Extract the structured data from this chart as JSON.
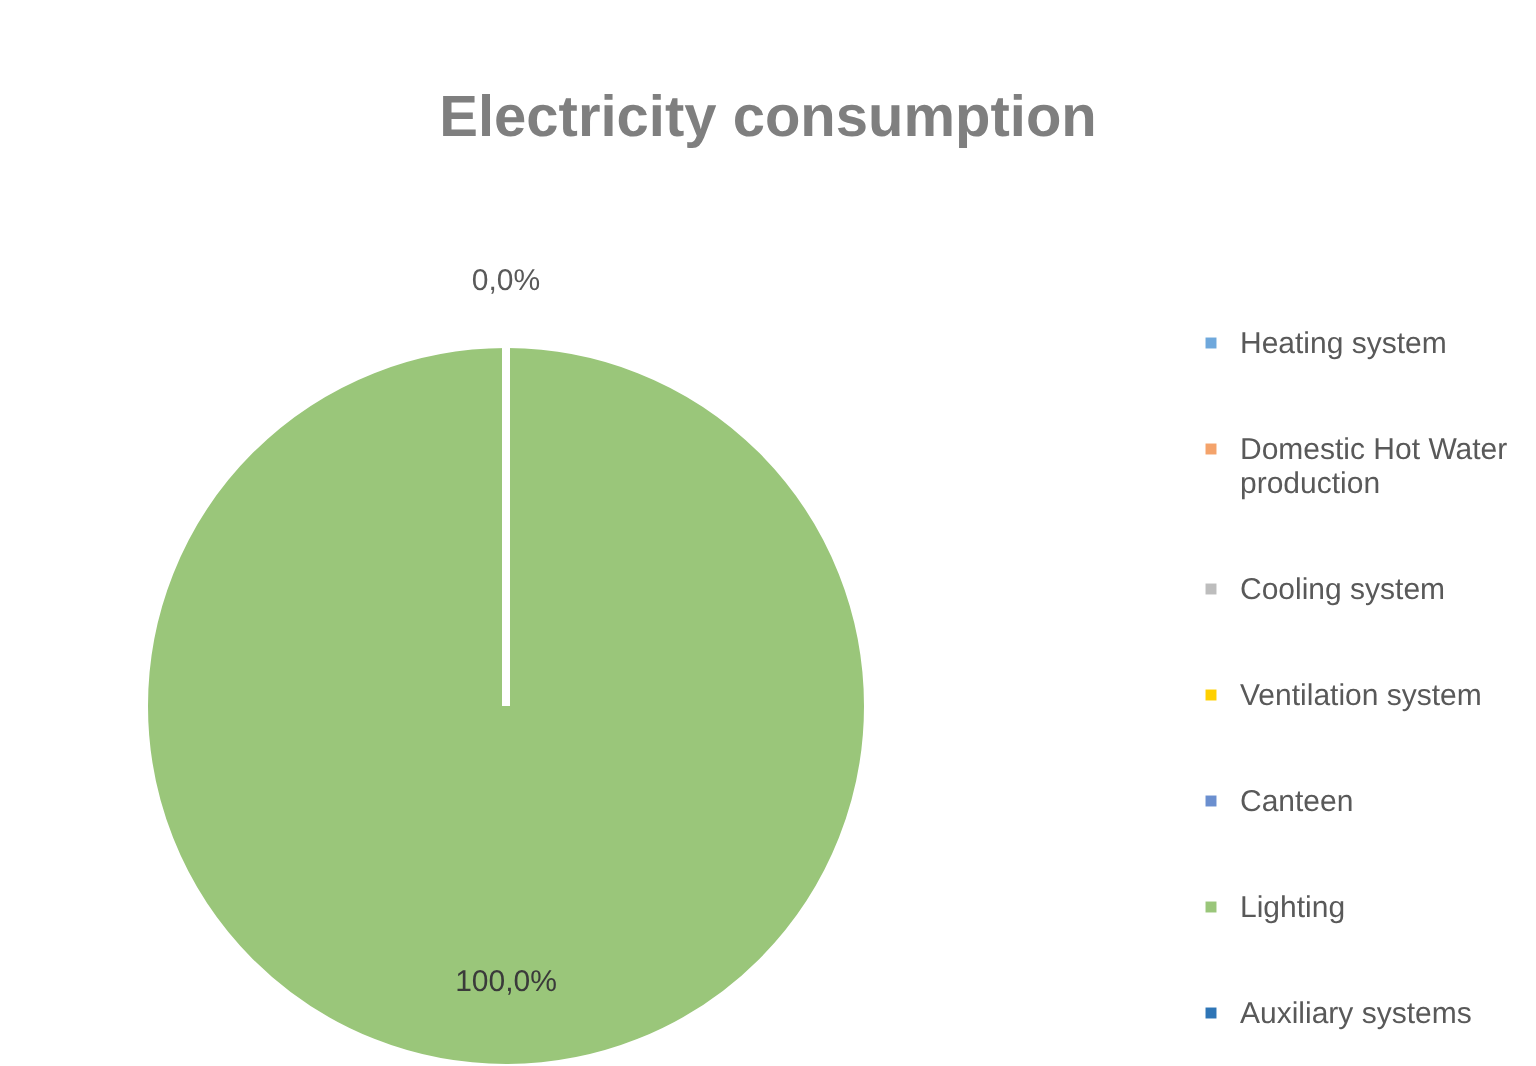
{
  "chart_data": {
    "type": "pie",
    "title": "Electricity consumption",
    "categories": [
      "Heating system",
      "Domestic Hot Water production",
      "Cooling system",
      "Ventilation system",
      "Canteen",
      "Lighting",
      "Auxiliary systems"
    ],
    "values": [
      0,
      0,
      0,
      0,
      0,
      100,
      0
    ],
    "colors": [
      "#6fa8dc",
      "#f4a36b",
      "#bdbdbd",
      "#ffd000",
      "#6b8fcf",
      "#9ac67a",
      "#2e75b6"
    ],
    "value_labels": [
      "0,0%",
      null,
      null,
      null,
      null,
      "100,0%",
      null
    ],
    "legend": "right"
  }
}
